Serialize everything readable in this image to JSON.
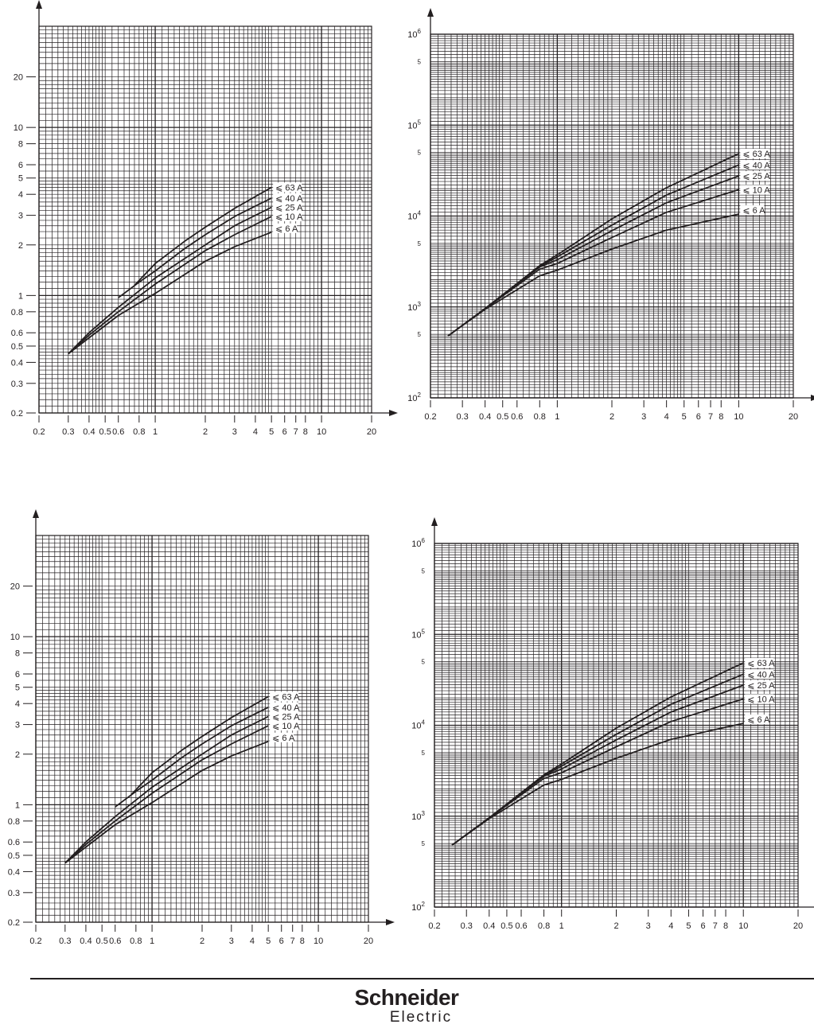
{
  "colors": {
    "ink": "#231f20",
    "grid": "#231f20",
    "background": "#ffffff"
  },
  "footer": {
    "logo_line1": "Schneider",
    "logo_line2": "Electric"
  },
  "chart_data": [
    {
      "type": "line",
      "id": "time-top-left",
      "xscale": "log",
      "yscale": "log",
      "xlim": [
        0.2,
        20
      ],
      "ylim": [
        0.2,
        40
      ],
      "xticks": [
        "0.2",
        "0.3",
        "0.4",
        "0.5",
        "0.6",
        "0.8",
        "1",
        "2",
        "3",
        "4",
        "5",
        "6",
        "7",
        "8",
        "10",
        "20"
      ],
      "yticks": [
        "0.2",
        "0.3",
        "0.4",
        "0.5",
        "0.6",
        "0.8",
        "1",
        "2",
        "3",
        "4",
        "5",
        "6",
        "8",
        "10",
        "20"
      ],
      "grid": true,
      "series": [
        {
          "name": "⩽ 63 A",
          "points": [
            [
              0.75,
              1.15
            ],
            [
              1,
              1.55
            ],
            [
              1.5,
              2.1
            ],
            [
              2,
              2.55
            ],
            [
              3,
              3.3
            ],
            [
              5,
              4.4
            ]
          ]
        },
        {
          "name": "⩽ 40 A",
          "points": [
            [
              0.6,
              0.97
            ],
            [
              0.8,
              1.2
            ],
            [
              1,
              1.4
            ],
            [
              1.5,
              1.9
            ],
            [
              2,
              2.3
            ],
            [
              3,
              2.95
            ],
            [
              5,
              3.8
            ]
          ]
        },
        {
          "name": "⩽ 25 A",
          "points": [
            [
              0.3,
              0.45
            ],
            [
              0.4,
              0.6
            ],
            [
              0.6,
              0.85
            ],
            [
              1,
              1.27
            ],
            [
              2,
              2.0
            ],
            [
              3,
              2.6
            ],
            [
              5,
              3.35
            ]
          ]
        },
        {
          "name": "⩽ 10 A",
          "points": [
            [
              0.3,
              0.45
            ],
            [
              0.4,
              0.58
            ],
            [
              0.6,
              0.8
            ],
            [
              1,
              1.17
            ],
            [
              2,
              1.85
            ],
            [
              3,
              2.3
            ],
            [
              5,
              2.95
            ]
          ]
        },
        {
          "name": "⩽ 6 A",
          "points": [
            [
              0.3,
              0.45
            ],
            [
              0.4,
              0.56
            ],
            [
              0.6,
              0.76
            ],
            [
              1,
              1.03
            ],
            [
              2,
              1.6
            ],
            [
              3,
              1.95
            ],
            [
              5,
              2.38
            ]
          ]
        }
      ]
    },
    {
      "type": "line",
      "id": "energy-top-right",
      "xscale": "log",
      "yscale": "log",
      "xlim": [
        0.2,
        20
      ],
      "ylim": [
        100,
        1000000
      ],
      "xticks": [
        "0.2",
        "0.3",
        "0.4",
        "0.5",
        "0.6",
        "0.8",
        "1",
        "2",
        "3",
        "4",
        "5",
        "6",
        "7",
        "8",
        "10",
        "20"
      ],
      "yticks": [
        {
          "v": 100,
          "base": "10",
          "exp": "2"
        },
        {
          "v": 500,
          "base": "5",
          "exp": ""
        },
        {
          "v": 1000,
          "base": "10",
          "exp": "3"
        },
        {
          "v": 5000,
          "base": "5",
          "exp": ""
        },
        {
          "v": 10000,
          "base": "10",
          "exp": "4"
        },
        {
          "v": 50000,
          "base": "5",
          "exp": ""
        },
        {
          "v": 100000,
          "base": "10",
          "exp": "5"
        },
        {
          "v": 500000,
          "base": "5",
          "exp": ""
        },
        {
          "v": 1000000,
          "base": "10",
          "exp": "6"
        }
      ],
      "grid": true,
      "series": [
        {
          "name": "⩽ 63 A",
          "points": [
            [
              0.25,
              480
            ],
            [
              0.4,
              960
            ],
            [
              0.8,
              2850
            ],
            [
              1,
              3750
            ],
            [
              2,
              9300
            ],
            [
              4,
              20500
            ],
            [
              10,
              48600
            ]
          ]
        },
        {
          "name": "⩽ 40 A",
          "points": [
            [
              0.25,
              480
            ],
            [
              0.4,
              960
            ],
            [
              0.8,
              2800
            ],
            [
              1,
              3550
            ],
            [
              2,
              7950
            ],
            [
              4,
              17000
            ],
            [
              10,
              36500
            ]
          ]
        },
        {
          "name": "⩽ 25 A",
          "points": [
            [
              0.25,
              480
            ],
            [
              0.4,
              960
            ],
            [
              0.8,
              2750
            ],
            [
              1,
              3300
            ],
            [
              2,
              6900
            ],
            [
              4,
              14000
            ],
            [
              10,
              27600
            ]
          ]
        },
        {
          "name": "⩽ 10 A",
          "points": [
            [
              0.25,
              480
            ],
            [
              0.4,
              955
            ],
            [
              0.8,
              2600
            ],
            [
              1,
              3000
            ],
            [
              2,
              5800
            ],
            [
              4,
              11000
            ],
            [
              10,
              19500
            ]
          ]
        },
        {
          "name": "⩽ 6 A",
          "points": [
            [
              0.25,
              480
            ],
            [
              0.4,
              940
            ],
            [
              0.8,
              2200
            ],
            [
              1,
              2540
            ],
            [
              2,
              4330
            ],
            [
              4,
              7000
            ],
            [
              10,
              10500
            ]
          ]
        }
      ]
    },
    {
      "type": "line",
      "id": "time-bottom-left",
      "xscale": "log",
      "yscale": "log",
      "xlim": [
        0.2,
        20
      ],
      "ylim": [
        0.2,
        40
      ],
      "xticks": [
        "0.2",
        "0.3",
        "0.4",
        "0.5",
        "0.6",
        "0.8",
        "1",
        "2",
        "3",
        "4",
        "5",
        "6",
        "7",
        "8",
        "10",
        "20"
      ],
      "yticks": [
        "0.2",
        "0.3",
        "0.4",
        "0.5",
        "0.6",
        "0.8",
        "1",
        "2",
        "3",
        "4",
        "5",
        "6",
        "8",
        "10",
        "20"
      ],
      "grid": true,
      "series": [
        {
          "name": "⩽ 63 A",
          "points": [
            [
              0.75,
              1.15
            ],
            [
              1,
              1.55
            ],
            [
              1.5,
              2.1
            ],
            [
              2,
              2.55
            ],
            [
              3,
              3.3
            ],
            [
              5,
              4.4
            ]
          ]
        },
        {
          "name": "⩽ 40 A",
          "points": [
            [
              0.6,
              0.97
            ],
            [
              0.8,
              1.2
            ],
            [
              1,
              1.4
            ],
            [
              1.5,
              1.9
            ],
            [
              2,
              2.3
            ],
            [
              3,
              2.95
            ],
            [
              5,
              3.8
            ]
          ]
        },
        {
          "name": "⩽ 25 A",
          "points": [
            [
              0.3,
              0.45
            ],
            [
              0.4,
              0.6
            ],
            [
              0.6,
              0.85
            ],
            [
              1,
              1.27
            ],
            [
              2,
              2.0
            ],
            [
              3,
              2.6
            ],
            [
              5,
              3.35
            ]
          ]
        },
        {
          "name": "⩽ 10 A",
          "points": [
            [
              0.3,
              0.45
            ],
            [
              0.4,
              0.58
            ],
            [
              0.6,
              0.8
            ],
            [
              1,
              1.17
            ],
            [
              2,
              1.85
            ],
            [
              3,
              2.3
            ],
            [
              5,
              2.95
            ]
          ]
        },
        {
          "name": "⩽ 6 A",
          "points": [
            [
              0.3,
              0.45
            ],
            [
              0.4,
              0.56
            ],
            [
              0.6,
              0.76
            ],
            [
              1,
              1.03
            ],
            [
              2,
              1.6
            ],
            [
              3,
              1.95
            ],
            [
              5,
              2.38
            ]
          ]
        }
      ]
    },
    {
      "type": "line",
      "id": "energy-bottom-right",
      "xscale": "log",
      "yscale": "log",
      "xlim": [
        0.2,
        20
      ],
      "ylim": [
        100,
        1000000
      ],
      "xticks": [
        "0.2",
        "0.3",
        "0.4",
        "0.5",
        "0.6",
        "0.8",
        "1",
        "2",
        "3",
        "4",
        "5",
        "6",
        "7",
        "8",
        "10",
        "20"
      ],
      "yticks": [
        {
          "v": 100,
          "base": "10",
          "exp": "2"
        },
        {
          "v": 500,
          "base": "5",
          "exp": ""
        },
        {
          "v": 1000,
          "base": "10",
          "exp": "3"
        },
        {
          "v": 5000,
          "base": "5",
          "exp": ""
        },
        {
          "v": 10000,
          "base": "10",
          "exp": "4"
        },
        {
          "v": 50000,
          "base": "5",
          "exp": ""
        },
        {
          "v": 100000,
          "base": "10",
          "exp": "5"
        },
        {
          "v": 500000,
          "base": "5",
          "exp": ""
        },
        {
          "v": 1000000,
          "base": "10",
          "exp": "6"
        }
      ],
      "grid": true,
      "series": [
        {
          "name": "⩽ 63 A",
          "points": [
            [
              0.25,
              480
            ],
            [
              0.4,
              960
            ],
            [
              0.8,
              2850
            ],
            [
              1,
              3750
            ],
            [
              2,
              9300
            ],
            [
              4,
              20500
            ],
            [
              10,
              48600
            ]
          ]
        },
        {
          "name": "⩽ 40 A",
          "points": [
            [
              0.25,
              480
            ],
            [
              0.4,
              960
            ],
            [
              0.8,
              2800
            ],
            [
              1,
              3550
            ],
            [
              2,
              7950
            ],
            [
              4,
              17000
            ],
            [
              10,
              36500
            ]
          ]
        },
        {
          "name": "⩽ 25 A",
          "points": [
            [
              0.25,
              480
            ],
            [
              0.4,
              960
            ],
            [
              0.8,
              2750
            ],
            [
              1,
              3300
            ],
            [
              2,
              6900
            ],
            [
              4,
              14000
            ],
            [
              10,
              27600
            ]
          ]
        },
        {
          "name": "⩽ 10 A",
          "points": [
            [
              0.25,
              480
            ],
            [
              0.4,
              955
            ],
            [
              0.8,
              2600
            ],
            [
              1,
              3000
            ],
            [
              2,
              5800
            ],
            [
              4,
              11000
            ],
            [
              10,
              19500
            ]
          ]
        },
        {
          "name": "⩽ 6 A",
          "points": [
            [
              0.25,
              480
            ],
            [
              0.4,
              940
            ],
            [
              0.8,
              2200
            ],
            [
              1,
              2540
            ],
            [
              2,
              4330
            ],
            [
              4,
              7000
            ],
            [
              10,
              10500
            ]
          ]
        }
      ]
    }
  ]
}
